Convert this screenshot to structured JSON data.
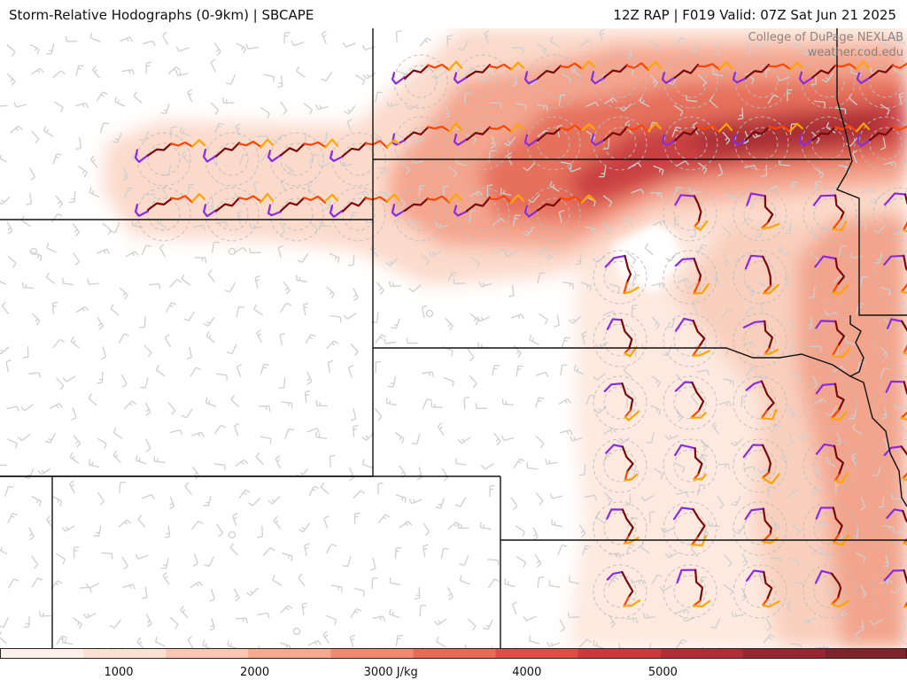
{
  "header": {
    "title_left": "Storm-Relative Hodographs (0-9km) | SBCAPE",
    "title_right": "12Z RAP | F019 Valid: 07Z Sat Jun 21 2025"
  },
  "credit": {
    "line1": "College of DuPage NEXLAB",
    "line2": "weather.cod.edu"
  },
  "colorbar": {
    "field": "SBCAPE",
    "min": 0,
    "max": 6000,
    "ticks": [
      {
        "value": 1000,
        "label": "1000"
      },
      {
        "value": 2000,
        "label": "2000"
      },
      {
        "value": 3000,
        "label": "3000 J/kg"
      },
      {
        "value": 4000,
        "label": "4000"
      },
      {
        "value": 5000,
        "label": "5000"
      }
    ],
    "colors": [
      "#fdf0ea",
      "#fce0d2",
      "#f9c7b2",
      "#f5a98e",
      "#ef8a70",
      "#e86a58",
      "#dc4e46",
      "#c93a3c",
      "#b12d35",
      "#962630",
      "#7e222b"
    ]
  },
  "hodograph_colors": [
    "#8a2be2",
    "#7a0a0a",
    "#ff4500",
    "#ffa500"
  ]
}
